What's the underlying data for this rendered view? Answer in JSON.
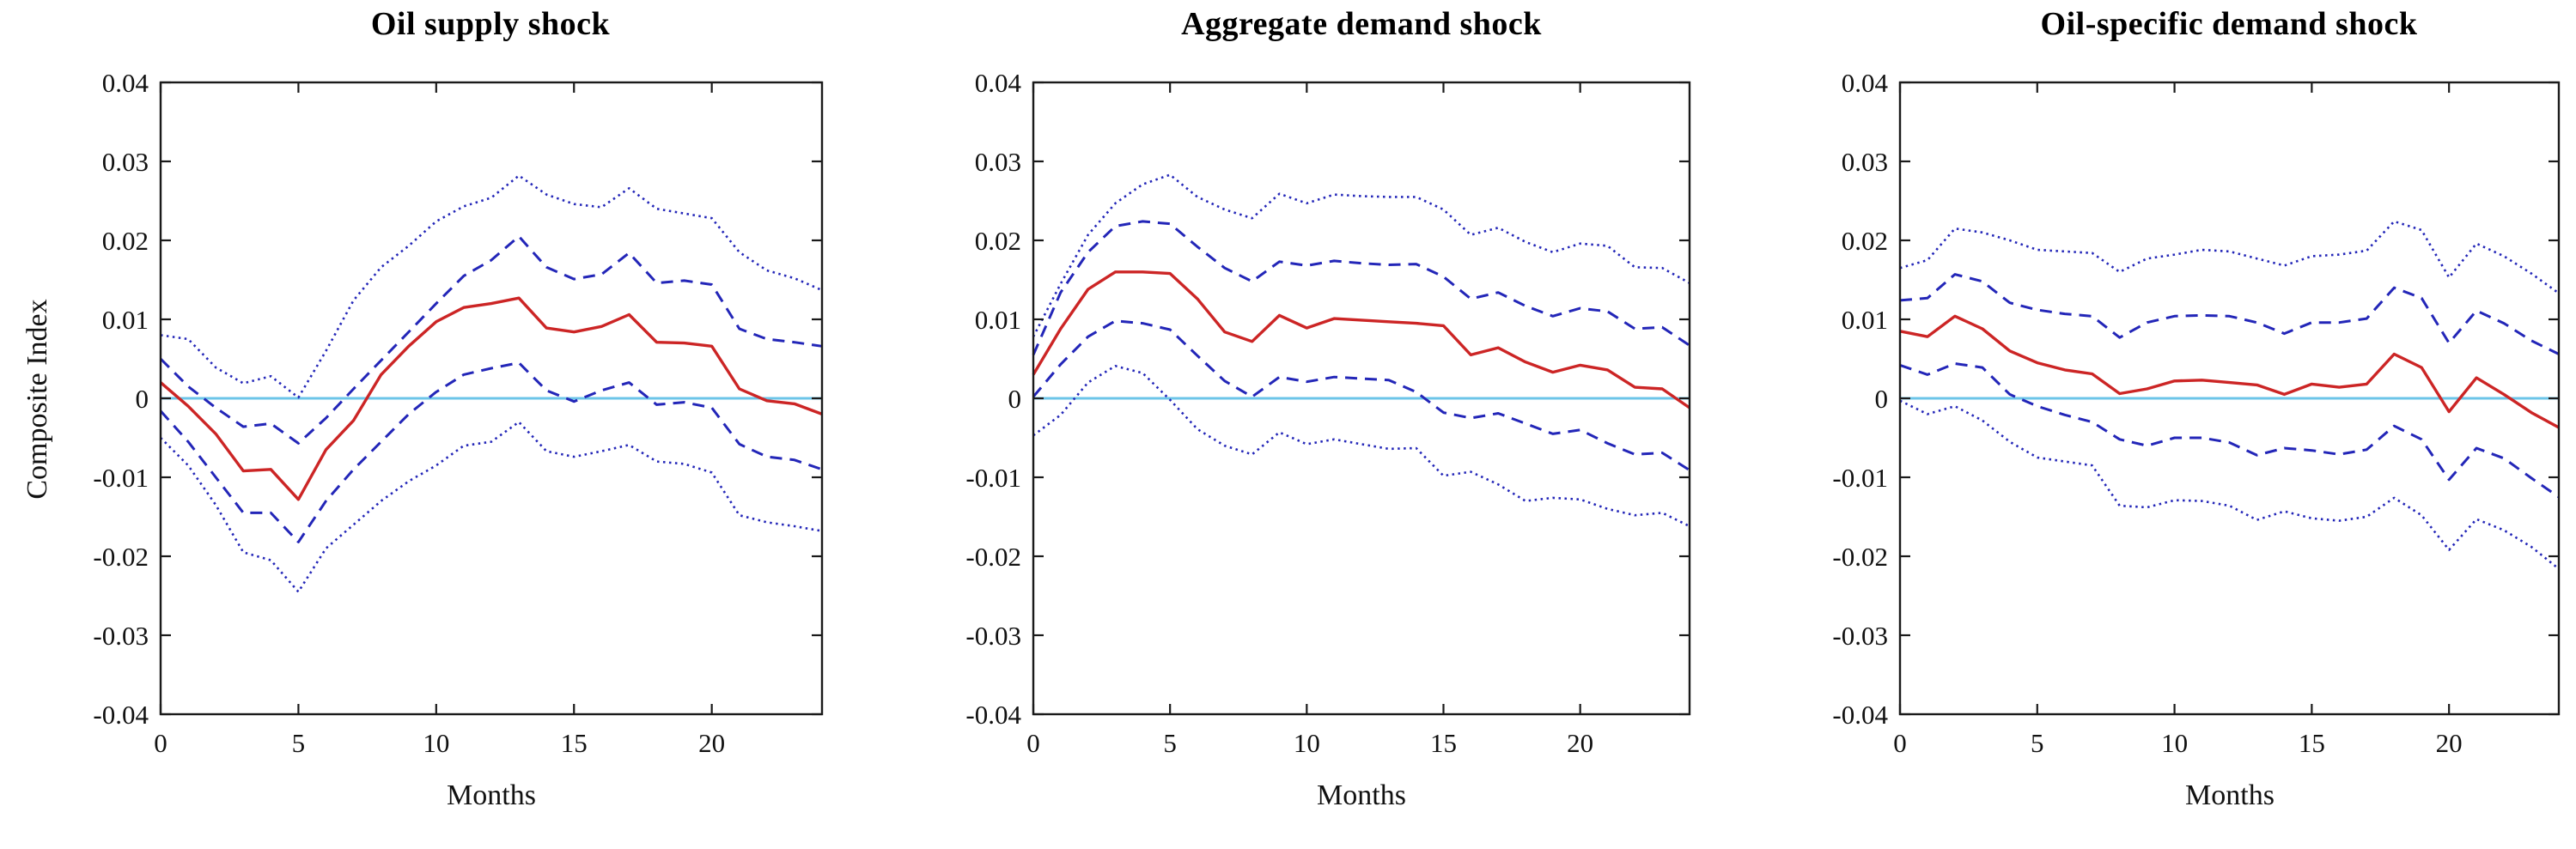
{
  "figure": {
    "ylabel": "Composite Index",
    "xlabel": "Months",
    "y_tick_labels": [
      "0.04",
      "0.03",
      "0.02",
      "0.01",
      "0",
      "-0.01",
      "-0.02",
      "-0.03",
      "-0.04"
    ],
    "y_tick_values": [
      0.04,
      0.03,
      0.02,
      0.01,
      0,
      -0.01,
      -0.02,
      -0.03,
      -0.04
    ],
    "x_tick_labels": [
      "0",
      "5",
      "10",
      "15",
      "20"
    ],
    "x_tick_values": [
      0,
      5,
      10,
      15,
      20
    ],
    "colors": {
      "median": "#cc2525",
      "band": "#2326b8",
      "zero_line": "#6cc5e8",
      "axis": "#1a1a1a",
      "background": "#ffffff"
    }
  },
  "chart_data": [
    {
      "type": "line",
      "title": "Oil supply shock",
      "xlabel": "Months",
      "ylabel": "Composite Index",
      "ylim": [
        -0.04,
        0.04
      ],
      "x_range": [
        0,
        24
      ],
      "grid": false,
      "legend": "none",
      "x": [
        0,
        1,
        2,
        3,
        4,
        5,
        6,
        7,
        8,
        9,
        10,
        11,
        12,
        13,
        14,
        15,
        16,
        17,
        18,
        19,
        20,
        21,
        22,
        23,
        24
      ],
      "zero_line": true,
      "series": [
        {
          "name": "dotted_upper_band",
          "style": "dotted",
          "values": [
            0.008,
            0.0075,
            0.0039,
            0.0019,
            0.0028,
            0.0001,
            0.006,
            0.0124,
            0.0166,
            0.0193,
            0.0224,
            0.0243,
            0.0254,
            0.0282,
            0.0258,
            0.0246,
            0.0242,
            0.0266,
            0.024,
            0.0234,
            0.0228,
            0.0185,
            0.0162,
            0.0152,
            0.0137
          ]
        },
        {
          "name": "dotted_lower_band",
          "style": "dotted",
          "values": [
            -0.005,
            -0.0085,
            -0.0135,
            -0.0195,
            -0.0205,
            -0.0245,
            -0.019,
            -0.016,
            -0.013,
            -0.0105,
            -0.0085,
            -0.006,
            -0.0055,
            -0.003,
            -0.0067,
            -0.0074,
            -0.0067,
            -0.0059,
            -0.008,
            -0.0083,
            -0.0094,
            -0.0148,
            -0.0157,
            -0.0162,
            -0.0168
          ]
        },
        {
          "name": "dashed_upper_band",
          "style": "dashed",
          "values": [
            0.005,
            0.0015,
            -0.0012,
            -0.0036,
            -0.0032,
            -0.0057,
            -0.0025,
            0.0012,
            0.0048,
            0.0084,
            0.012,
            0.0155,
            0.0175,
            0.0205,
            0.0166,
            0.0151,
            0.0157,
            0.0184,
            0.0146,
            0.0149,
            0.0144,
            0.0088,
            0.0075,
            0.0071,
            0.0066
          ]
        },
        {
          "name": "dashed_lower_band",
          "style": "dashed",
          "values": [
            -0.0016,
            -0.0055,
            -0.01,
            -0.0145,
            -0.0145,
            -0.0182,
            -0.013,
            -0.009,
            -0.0055,
            -0.002,
            0.0008,
            0.003,
            0.0038,
            0.0045,
            0.001,
            -0.0004,
            0.001,
            0.002,
            -0.0008,
            -0.0005,
            -0.0012,
            -0.0058,
            -0.0074,
            -0.0078,
            -0.009
          ]
        },
        {
          "name": "median_response",
          "style": "solid",
          "values": [
            0.002,
            -0.001,
            -0.0045,
            -0.0092,
            -0.009,
            -0.0128,
            -0.0065,
            -0.0028,
            0.003,
            0.0066,
            0.0097,
            0.0115,
            0.012,
            0.0127,
            0.0089,
            0.0084,
            0.0091,
            0.0106,
            0.0071,
            0.007,
            0.0066,
            0.0012,
            -0.0003,
            -0.0007,
            -0.002
          ]
        }
      ]
    },
    {
      "type": "line",
      "title": "Aggregate demand shock",
      "xlabel": "Months",
      "ylabel": "",
      "ylim": [
        -0.04,
        0.04
      ],
      "x_range": [
        0,
        24
      ],
      "grid": false,
      "legend": "none",
      "x": [
        0,
        1,
        2,
        3,
        4,
        5,
        6,
        7,
        8,
        9,
        10,
        11,
        12,
        13,
        14,
        15,
        16,
        17,
        18,
        19,
        20,
        21,
        22,
        23,
        24
      ],
      "zero_line": true,
      "series": [
        {
          "name": "dotted_upper_band",
          "style": "dotted",
          "values": [
            0.0078,
            0.0145,
            0.0207,
            0.0247,
            0.0271,
            0.0283,
            0.0255,
            0.0239,
            0.0228,
            0.0259,
            0.0247,
            0.0258,
            0.0256,
            0.0255,
            0.0255,
            0.0239,
            0.0207,
            0.0216,
            0.0198,
            0.0185,
            0.0196,
            0.0193,
            0.0166,
            0.0165,
            0.0146
          ]
        },
        {
          "name": "dotted_lower_band",
          "style": "dotted",
          "values": [
            -0.0047,
            -0.0021,
            0.002,
            0.0041,
            0.0032,
            -0.0002,
            -0.0039,
            -0.006,
            -0.0071,
            -0.0043,
            -0.0058,
            -0.0052,
            -0.0058,
            -0.0064,
            -0.0063,
            -0.0098,
            -0.0093,
            -0.0109,
            -0.013,
            -0.0126,
            -0.0128,
            -0.014,
            -0.0148,
            -0.0145,
            -0.0162
          ]
        },
        {
          "name": "dashed_upper_band",
          "style": "dashed",
          "values": [
            0.0055,
            0.0134,
            0.0185,
            0.0218,
            0.0224,
            0.0221,
            0.0192,
            0.0165,
            0.0148,
            0.0173,
            0.0168,
            0.0174,
            0.0171,
            0.0169,
            0.017,
            0.0154,
            0.0126,
            0.0134,
            0.0117,
            0.0104,
            0.0114,
            0.011,
            0.0088,
            0.009,
            0.0067
          ]
        },
        {
          "name": "dashed_lower_band",
          "style": "dashed",
          "values": [
            0.0002,
            0.0043,
            0.0078,
            0.0098,
            0.0095,
            0.0087,
            0.0054,
            0.0022,
            0.0002,
            0.0027,
            0.0021,
            0.0027,
            0.0025,
            0.0023,
            0.0008,
            -0.0018,
            -0.0025,
            -0.0019,
            -0.0032,
            -0.0045,
            -0.004,
            -0.0057,
            -0.0071,
            -0.0069,
            -0.0091
          ]
        },
        {
          "name": "median_response",
          "style": "solid",
          "values": [
            0.003,
            0.0088,
            0.0138,
            0.016,
            0.016,
            0.0158,
            0.0126,
            0.0084,
            0.0072,
            0.0105,
            0.0089,
            0.0101,
            0.0099,
            0.0097,
            0.0095,
            0.0092,
            0.0055,
            0.0064,
            0.0046,
            0.0033,
            0.0042,
            0.0036,
            0.0014,
            0.0012,
            -0.0012
          ]
        }
      ]
    },
    {
      "type": "line",
      "title": "Oil-specific demand shock",
      "xlabel": "Months",
      "ylabel": "",
      "ylim": [
        -0.04,
        0.04
      ],
      "x_range": [
        0,
        24
      ],
      "grid": false,
      "legend": "none",
      "x": [
        0,
        1,
        2,
        3,
        4,
        5,
        6,
        7,
        8,
        9,
        10,
        11,
        12,
        13,
        14,
        15,
        16,
        17,
        18,
        19,
        20,
        21,
        22,
        23,
        24
      ],
      "zero_line": true,
      "series": [
        {
          "name": "dotted_upper_band",
          "style": "dotted",
          "values": [
            0.0165,
            0.0175,
            0.0215,
            0.021,
            0.02,
            0.0188,
            0.0186,
            0.0184,
            0.016,
            0.0177,
            0.0182,
            0.0188,
            0.0186,
            0.0177,
            0.0168,
            0.018,
            0.0182,
            0.0187,
            0.0224,
            0.0213,
            0.0153,
            0.0196,
            0.018,
            0.0158,
            0.0133
          ]
        },
        {
          "name": "dotted_lower_band",
          "style": "dotted",
          "values": [
            -0.0003,
            -0.002,
            -0.001,
            -0.0028,
            -0.0055,
            -0.0075,
            -0.008,
            -0.0085,
            -0.0136,
            -0.0138,
            -0.0129,
            -0.013,
            -0.0136,
            -0.0154,
            -0.0143,
            -0.0152,
            -0.0155,
            -0.015,
            -0.0126,
            -0.0148,
            -0.0192,
            -0.0153,
            -0.0167,
            -0.0188,
            -0.0216
          ]
        },
        {
          "name": "dashed_upper_band",
          "style": "dashed",
          "values": [
            0.0124,
            0.0127,
            0.0157,
            0.0148,
            0.0121,
            0.0112,
            0.0107,
            0.0104,
            0.0077,
            0.0096,
            0.0104,
            0.0105,
            0.0104,
            0.0096,
            0.0082,
            0.0096,
            0.0096,
            0.0101,
            0.014,
            0.0127,
            0.007,
            0.0111,
            0.0095,
            0.0073,
            0.0056
          ]
        },
        {
          "name": "dashed_lower_band",
          "style": "dashed",
          "values": [
            0.0042,
            0.003,
            0.0044,
            0.0039,
            0.0005,
            -0.001,
            -0.0021,
            -0.003,
            -0.0052,
            -0.006,
            -0.005,
            -0.005,
            -0.0056,
            -0.0072,
            -0.0063,
            -0.0066,
            -0.0071,
            -0.0065,
            -0.0035,
            -0.0052,
            -0.0103,
            -0.0063,
            -0.0076,
            -0.0101,
            -0.0125
          ]
        },
        {
          "name": "median_response",
          "style": "solid",
          "values": [
            0.0085,
            0.0078,
            0.0104,
            0.0088,
            0.006,
            0.0045,
            0.0036,
            0.0031,
            0.0006,
            0.0012,
            0.0022,
            0.0023,
            0.002,
            0.0017,
            0.0005,
            0.0018,
            0.0014,
            0.0018,
            0.0056,
            0.0039,
            -0.0017,
            0.0026,
            0.0005,
            -0.0018,
            -0.0037
          ]
        }
      ]
    }
  ]
}
